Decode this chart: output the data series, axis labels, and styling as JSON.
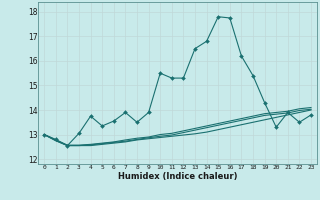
{
  "xlabel": "Humidex (Indice chaleur)",
  "background_color": "#c8eaea",
  "grid_color": "#c0d8d8",
  "line_color": "#1a7070",
  "xlim": [
    -0.5,
    23.5
  ],
  "ylim": [
    11.8,
    18.4
  ],
  "yticks": [
    12,
    13,
    14,
    15,
    16,
    17,
    18
  ],
  "xticks": [
    0,
    1,
    2,
    3,
    4,
    5,
    6,
    7,
    8,
    9,
    10,
    11,
    12,
    13,
    14,
    15,
    16,
    17,
    18,
    19,
    20,
    21,
    22,
    23
  ],
  "line1_x": [
    0,
    1,
    2,
    3,
    4,
    5,
    6,
    7,
    8,
    9,
    10,
    11,
    12,
    13,
    14,
    15,
    16,
    17,
    18,
    19,
    20,
    21,
    22,
    23
  ],
  "line1_y": [
    13.0,
    12.8,
    12.55,
    13.05,
    13.75,
    13.35,
    13.55,
    13.9,
    13.5,
    13.9,
    15.5,
    15.3,
    15.3,
    16.5,
    16.8,
    17.8,
    17.75,
    16.2,
    15.4,
    14.3,
    13.3,
    13.9,
    13.5,
    13.8
  ],
  "line2_x": [
    0,
    1,
    2,
    3,
    4,
    5,
    6,
    7,
    8,
    9,
    10,
    11,
    12,
    13,
    14,
    15,
    16,
    17,
    18,
    19,
    20,
    21,
    22,
    23
  ],
  "line2_y": [
    13.0,
    12.75,
    12.55,
    12.55,
    12.55,
    12.6,
    12.65,
    12.7,
    12.78,
    12.83,
    12.88,
    12.93,
    12.98,
    13.03,
    13.1,
    13.2,
    13.3,
    13.4,
    13.5,
    13.6,
    13.7,
    13.8,
    13.9,
    14.0
  ],
  "line3_x": [
    0,
    1,
    2,
    3,
    4,
    5,
    6,
    7,
    8,
    9,
    10,
    11,
    12,
    13,
    14,
    15,
    16,
    17,
    18,
    19,
    20,
    21,
    22,
    23
  ],
  "line3_y": [
    13.0,
    12.75,
    12.55,
    12.55,
    12.58,
    12.63,
    12.68,
    12.73,
    12.8,
    12.87,
    12.93,
    12.98,
    13.08,
    13.18,
    13.28,
    13.38,
    13.48,
    13.58,
    13.68,
    13.78,
    13.83,
    13.88,
    13.98,
    14.03
  ],
  "line4_x": [
    0,
    1,
    2,
    3,
    4,
    5,
    6,
    7,
    8,
    9,
    10,
    11,
    12,
    13,
    14,
    15,
    16,
    17,
    18,
    19,
    20,
    21,
    22,
    23
  ],
  "line4_y": [
    13.0,
    12.78,
    12.57,
    12.57,
    12.6,
    12.65,
    12.7,
    12.78,
    12.85,
    12.9,
    13.0,
    13.05,
    13.15,
    13.25,
    13.35,
    13.45,
    13.55,
    13.65,
    13.75,
    13.85,
    13.9,
    13.95,
    14.05,
    14.1
  ]
}
